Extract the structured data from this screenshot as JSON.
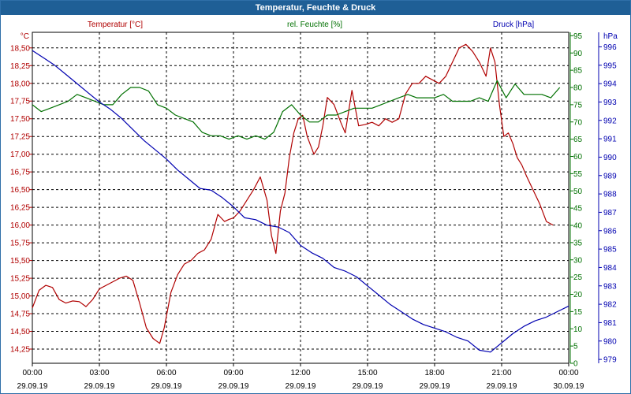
{
  "window": {
    "title": "Temperatur, Feuchte & Druck"
  },
  "chart_data": {
    "type": "line",
    "title": "Temperatur, Feuchte & Druck",
    "grid": true,
    "x_tick_times": [
      "00:00",
      "03:00",
      "06:00",
      "09:00",
      "12:00",
      "15:00",
      "18:00",
      "21:00",
      "00:00"
    ],
    "x_tick_dates": [
      "29.09.19",
      "29.09.19",
      "29.09.19",
      "29.09.19",
      "29.09.19",
      "29.09.19",
      "29.09.19",
      "29.09.19",
      "30.09.19"
    ],
    "x_range_hours": [
      0,
      24
    ],
    "axes": {
      "temperature": {
        "label": "Temperatur [°C]",
        "unit": "°C",
        "color": "#b00000",
        "side": "left",
        "range": [
          14.05,
          18.72
        ],
        "ticks": [
          "14,25",
          "14,50",
          "14,75",
          "15,00",
          "15,25",
          "15,50",
          "15,75",
          "16,00",
          "16,25",
          "16,50",
          "16,75",
          "17,00",
          "17,25",
          "17,50",
          "17,75",
          "18,00",
          "18,25",
          "18,50"
        ],
        "tick_values": [
          14.25,
          14.5,
          14.75,
          15.0,
          15.25,
          15.5,
          15.75,
          16.0,
          16.25,
          16.5,
          16.75,
          17.0,
          17.25,
          17.5,
          17.75,
          18.0,
          18.25,
          18.5
        ]
      },
      "humidity": {
        "label": "rel. Feuchte [%]",
        "unit": "%",
        "color": "#007000",
        "side": "right",
        "range": [
          0,
          96
        ],
        "ticks": [
          "0",
          "5",
          "10",
          "15",
          "20",
          "25",
          "30",
          "35",
          "40",
          "45",
          "50",
          "55",
          "60",
          "65",
          "70",
          "75",
          "80",
          "85",
          "90",
          "95"
        ],
        "tick_values": [
          0,
          5,
          10,
          15,
          20,
          25,
          30,
          35,
          40,
          45,
          50,
          55,
          60,
          65,
          70,
          75,
          80,
          85,
          90,
          95
        ]
      },
      "pressure": {
        "label": "Druck [hPa]",
        "unit": "hPa",
        "color": "#0000b0",
        "side": "right",
        "range": [
          978.79,
          996.79
        ],
        "ticks": [
          "979",
          "980",
          "981",
          "982",
          "983",
          "984",
          "985",
          "986",
          "987",
          "988",
          "989",
          "990",
          "991",
          "992",
          "993",
          "994",
          "995",
          "996"
        ],
        "tick_values": [
          979,
          980,
          981,
          982,
          983,
          984,
          985,
          986,
          987,
          988,
          989,
          990,
          991,
          992,
          993,
          994,
          995,
          996
        ]
      }
    },
    "series": [
      {
        "name": "Temperatur [°C]",
        "axis": "temperature",
        "color": "#b00000",
        "x": [
          0,
          0.3,
          0.6,
          0.9,
          1.2,
          1.5,
          1.8,
          2.1,
          2.4,
          2.7,
          3.0,
          3.3,
          3.6,
          3.9,
          4.2,
          4.5,
          4.8,
          5.1,
          5.4,
          5.7,
          5.9,
          6.2,
          6.5,
          6.8,
          7.1,
          7.4,
          7.7,
          8.0,
          8.3,
          8.6,
          8.8,
          9.0,
          9.3,
          9.6,
          9.9,
          10.2,
          10.5,
          10.7,
          10.9,
          11.1,
          11.3,
          11.5,
          11.7,
          11.9,
          12.1,
          12.3,
          12.6,
          12.8,
          13.0,
          13.2,
          13.5,
          13.8,
          14.0,
          14.3,
          14.6,
          14.9,
          15.2,
          15.5,
          15.8,
          16.1,
          16.4,
          16.7,
          17.0,
          17.3,
          17.6,
          17.9,
          18.2,
          18.5,
          18.8,
          19.1,
          19.4,
          19.7,
          20.0,
          20.3,
          20.5,
          20.7,
          20.9,
          21.1,
          21.3,
          21.5,
          21.7,
          21.9,
          22.1,
          22.4,
          22.7,
          23.0,
          23.3,
          23.6,
          23.9
        ],
        "values": [
          14.83,
          15.08,
          15.15,
          15.12,
          14.95,
          14.9,
          14.93,
          14.92,
          14.85,
          14.95,
          15.1,
          15.15,
          15.2,
          15.25,
          15.28,
          15.22,
          14.9,
          14.55,
          14.4,
          14.33,
          14.55,
          15.05,
          15.3,
          15.45,
          15.5,
          15.6,
          15.65,
          15.8,
          16.15,
          16.05,
          16.08,
          16.1,
          16.2,
          16.35,
          16.5,
          16.68,
          16.35,
          15.85,
          15.6,
          16.2,
          16.45,
          16.95,
          17.3,
          17.5,
          17.55,
          17.25,
          17.0,
          17.1,
          17.4,
          17.8,
          17.7,
          17.45,
          17.3,
          17.9,
          17.4,
          17.42,
          17.45,
          17.4,
          17.5,
          17.45,
          17.5,
          17.85,
          18.0,
          18.0,
          18.1,
          18.05,
          18.0,
          18.1,
          18.3,
          18.5,
          18.55,
          18.45,
          18.3,
          18.1,
          18.5,
          18.3,
          17.7,
          17.25,
          17.3,
          17.15,
          16.95,
          16.85,
          16.7,
          16.5,
          16.3,
          16.05,
          16.0,
          null,
          null
        ],
        "_note_hidden": ""
      },
      {
        "name": "rel. Feuchte [%]",
        "axis": "humidity",
        "color": "#007000",
        "x": [
          0,
          0.4,
          0.8,
          1.2,
          1.6,
          2.0,
          2.4,
          2.8,
          3.2,
          3.6,
          4.0,
          4.4,
          4.8,
          5.2,
          5.6,
          6.0,
          6.4,
          6.8,
          7.2,
          7.6,
          8.0,
          8.4,
          8.8,
          9.2,
          9.6,
          10.0,
          10.4,
          10.8,
          11.2,
          11.6,
          12.0,
          12.4,
          12.8,
          13.2,
          13.6,
          14.0,
          14.4,
          14.8,
          15.2,
          15.6,
          16.0,
          16.4,
          16.8,
          17.2,
          17.6,
          18.0,
          18.4,
          18.8,
          19.2,
          19.6,
          20.0,
          20.4,
          20.8,
          21.2,
          21.6,
          22.0,
          22.4,
          22.8,
          23.2,
          23.6
        ],
        "values": [
          75,
          73,
          74,
          75,
          76,
          78,
          77,
          76,
          75,
          75,
          78,
          80,
          80,
          79,
          75,
          74,
          72,
          71,
          70,
          67,
          66,
          66,
          65,
          66,
          65,
          66,
          65,
          67,
          73,
          75,
          72,
          70,
          70,
          72,
          72,
          73,
          74,
          74,
          74,
          75,
          76,
          77,
          78,
          77,
          77,
          77,
          78,
          76,
          76,
          76,
          77,
          76,
          82,
          77,
          81,
          78,
          78,
          78,
          77,
          80
        ],
        "_note_hidden": ""
      },
      {
        "name": "Druck [hPa]",
        "axis": "pressure",
        "color": "#0000b0",
        "x": [
          0,
          0.5,
          1.0,
          1.5,
          2.0,
          2.5,
          3.0,
          3.5,
          4.0,
          4.5,
          5.0,
          5.5,
          6.0,
          6.5,
          7.0,
          7.5,
          8.0,
          8.5,
          9.0,
          9.5,
          10.0,
          10.5,
          11.0,
          11.5,
          12.0,
          12.5,
          13.0,
          13.5,
          14.0,
          14.5,
          15.0,
          15.5,
          16.0,
          16.5,
          17.0,
          17.5,
          18.0,
          18.5,
          19.0,
          19.5,
          20.0,
          20.5,
          21.0,
          21.5,
          22.0,
          22.5,
          23.0,
          23.5,
          24.0
        ],
        "values": [
          995.8,
          995.4,
          995.0,
          994.5,
          994.0,
          993.5,
          993.0,
          992.6,
          992.1,
          991.5,
          990.9,
          990.4,
          989.9,
          989.3,
          988.8,
          988.3,
          988.2,
          987.8,
          987.3,
          986.7,
          986.6,
          986.3,
          986.2,
          985.9,
          985.2,
          984.8,
          984.5,
          984.0,
          983.8,
          983.5,
          983.0,
          982.5,
          982.0,
          981.6,
          981.2,
          980.9,
          980.7,
          980.5,
          980.2,
          980.0,
          979.5,
          979.4,
          979.9,
          980.4,
          980.8,
          981.1,
          981.3,
          981.6,
          981.9
        ],
        "_note_hidden": ""
      }
    ]
  }
}
